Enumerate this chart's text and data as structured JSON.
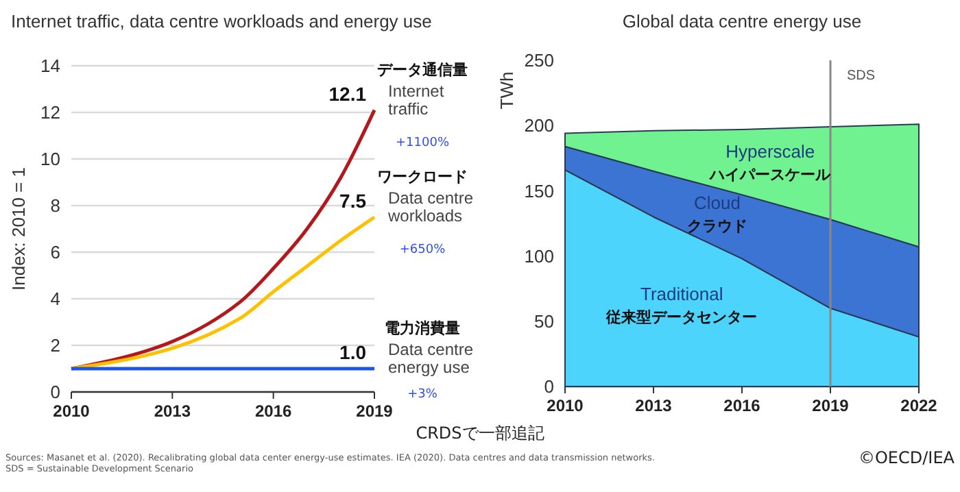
{
  "chart_data": [
    {
      "type": "line",
      "title": "Internet traffic, data centre workloads and energy use",
      "ylabel": "Index: 2010 = 1",
      "x": [
        2010,
        2015,
        2016,
        2017,
        2018,
        2019
      ],
      "xlim": [
        2010,
        2019
      ],
      "xticks": [
        2010,
        2013,
        2016,
        2019
      ],
      "ylim": [
        0,
        14
      ],
      "yticks": [
        0,
        2,
        4,
        6,
        8,
        10,
        12,
        14
      ],
      "grid": "y",
      "legend": false,
      "marker": "none",
      "line_style": "solid",
      "series": [
        {
          "name": "Internet traffic",
          "color": "#b3191c",
          "values": [
            1,
            3.85,
            5.3,
            7.0,
            9.2,
            12.1
          ],
          "value_labels": [
            null,
            null,
            null,
            null,
            null,
            "12.1"
          ]
        },
        {
          "name": "Data centre workloads",
          "color": "#ffc000",
          "values": [
            1,
            3.15,
            4.3,
            5.4,
            6.5,
            7.5
          ],
          "value_labels": [
            null,
            null,
            null,
            null,
            null,
            "7.5"
          ]
        },
        {
          "name": "Data centre energy use",
          "color": "#1f55e0",
          "values": [
            1,
            1,
            1,
            1,
            1,
            1.0
          ],
          "value_labels": [
            null,
            null,
            null,
            null,
            null,
            "1.0"
          ]
        }
      ],
      "annotations": [
        "データ通信量",
        "+1100%",
        "ワークロード",
        "+650%",
        "電力消費量",
        "+3%"
      ]
    },
    {
      "type": "area",
      "stacked": true,
      "title": "Global data centre energy use",
      "ylabel": "TWh",
      "x": [
        2010,
        2013,
        2016,
        2019,
        2022
      ],
      "xlim": [
        2010,
        2022
      ],
      "xticks": [
        2010,
        2013,
        2016,
        2019,
        2022
      ],
      "ylim": [
        0,
        250
      ],
      "yticks": [
        0,
        50,
        100,
        150,
        200,
        250
      ],
      "legend": false,
      "series": [
        {
          "name": "Traditional\n従来型データセンター",
          "color": "#4dd4fc",
          "values": [
            166,
            130,
            98,
            60,
            38
          ]
        },
        {
          "name": "Cloud\nクラウド",
          "color": "#3c74d4",
          "values": [
            18,
            35,
            49,
            68,
            69
          ]
        },
        {
          "name": "Hyperscale\nハイパースケール",
          "color": "#6ff28f",
          "values": [
            10,
            31,
            50,
            71,
            94
          ]
        }
      ],
      "ref_lines": [
        {
          "axis": "x",
          "value": 2019,
          "label": "SDS",
          "color": "#888888"
        }
      ],
      "annotations": [
        "CRDSで一部追記",
        "Sources: Masanet et al. (2020). Recalibrating global data center energy-use estimates. IEA (2020). Data centres and data transmission networks.",
        "SDS = Sustainable Development Scenario",
        "©OECD/IEA"
      ]
    }
  ]
}
